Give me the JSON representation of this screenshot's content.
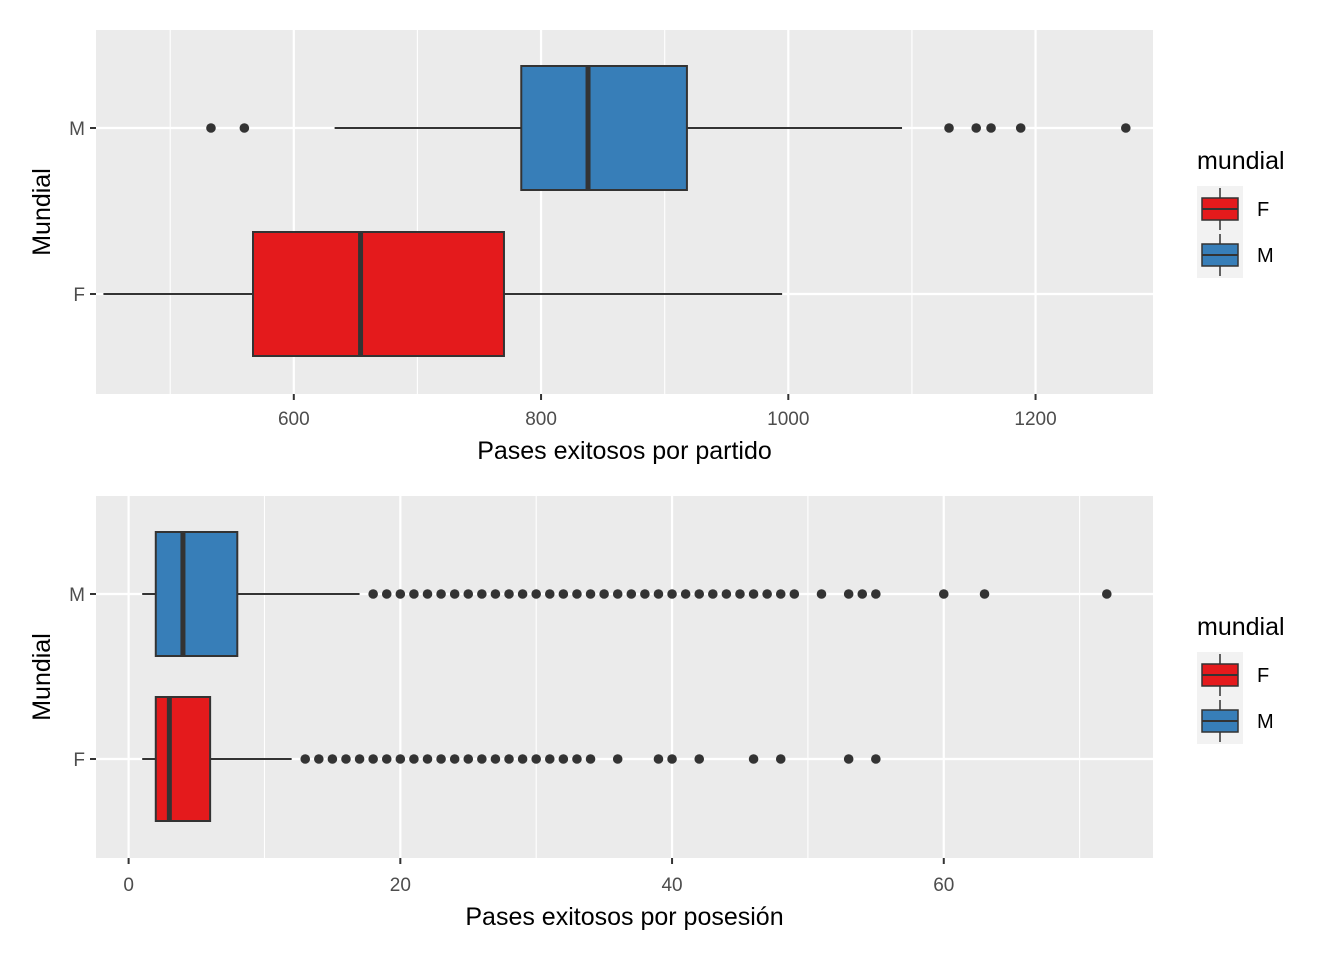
{
  "colors": {
    "panel": "#EBEBEB",
    "grid": "#FFFFFF",
    "F": "#E41A1C",
    "M": "#377EB8",
    "ink": "#333333"
  },
  "chart_data": [
    {
      "type": "boxplot",
      "orientation": "horizontal",
      "xlabel": "Pases exitosos por partido",
      "ylabel": "Mundial",
      "xlim": [
        440,
        1295
      ],
      "xticks": [
        600,
        800,
        1000,
        1200
      ],
      "categories": [
        "F",
        "M"
      ],
      "grid": true,
      "legend": {
        "title": "mundial",
        "position": "right",
        "entries": [
          "F",
          "M"
        ]
      },
      "series": [
        {
          "name": "F",
          "whisker_low": 446,
          "q1": 567,
          "median": 654,
          "q3": 770,
          "whisker_high": 995,
          "outliers": []
        },
        {
          "name": "M",
          "whisker_low": 633,
          "q1": 784,
          "median": 838,
          "q3": 918,
          "whisker_high": 1092,
          "outliers": [
            533,
            560,
            1130,
            1152,
            1164,
            1188,
            1273
          ]
        }
      ]
    },
    {
      "type": "boxplot",
      "orientation": "horizontal",
      "xlabel": "Pases exitosos por posesión",
      "ylabel": "Mundial",
      "xlim": [
        -2.4,
        75.4
      ],
      "xticks": [
        0,
        20,
        40,
        60
      ],
      "categories": [
        "F",
        "M"
      ],
      "grid": true,
      "legend": {
        "title": "mundial",
        "position": "right",
        "entries": [
          "F",
          "M"
        ]
      },
      "series": [
        {
          "name": "F",
          "whisker_low": 1,
          "q1": 2,
          "median": 3,
          "q3": 6,
          "whisker_high": 12,
          "outliers": [
            13,
            14,
            15,
            16,
            17,
            18,
            19,
            20,
            21,
            22,
            23,
            24,
            25,
            26,
            27,
            28,
            29,
            30,
            31,
            32,
            33,
            34,
            36,
            39,
            40,
            42,
            46,
            48,
            53,
            55
          ]
        },
        {
          "name": "M",
          "whisker_low": 1,
          "q1": 2,
          "median": 4,
          "q3": 8,
          "whisker_high": 17,
          "outliers": [
            18,
            19,
            20,
            21,
            22,
            23,
            24,
            25,
            26,
            27,
            28,
            29,
            30,
            31,
            32,
            33,
            34,
            35,
            36,
            37,
            38,
            39,
            40,
            41,
            42,
            43,
            44,
            45,
            46,
            47,
            48,
            49,
            51,
            53,
            54,
            55,
            60,
            63,
            72
          ]
        }
      ]
    }
  ]
}
